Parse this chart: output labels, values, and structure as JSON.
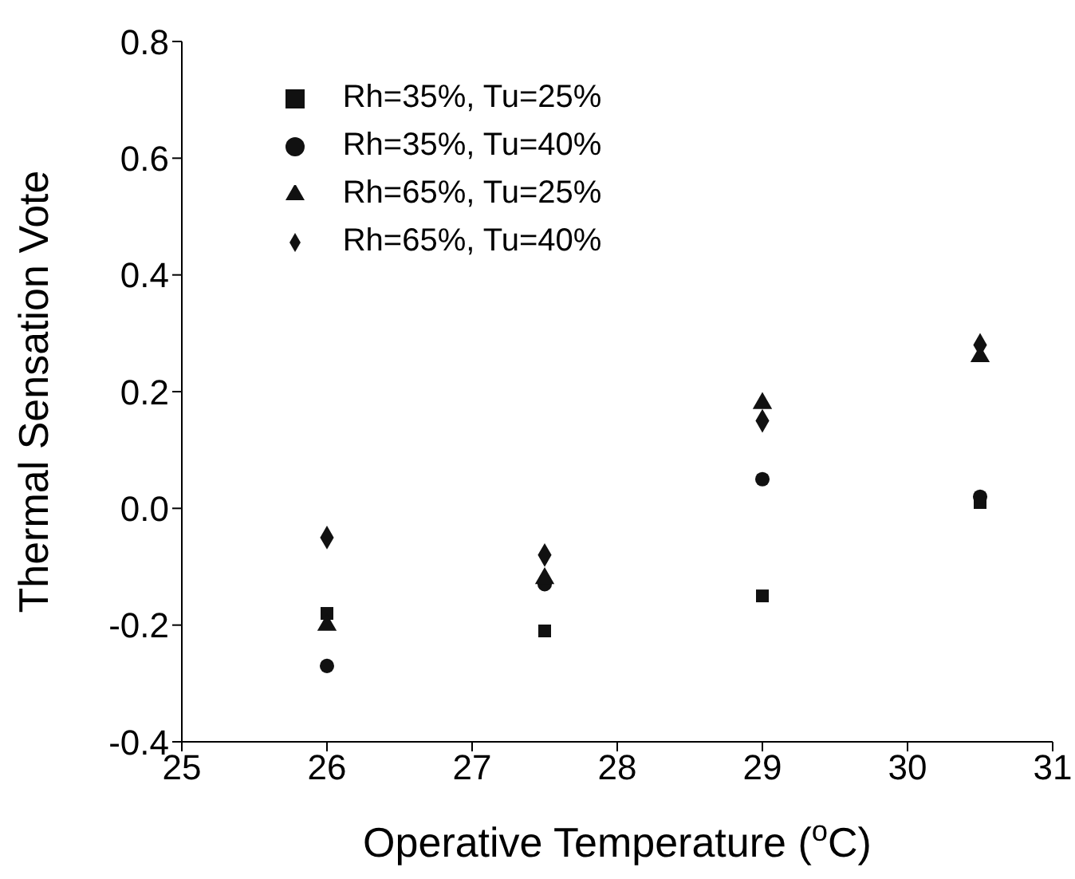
{
  "chart_data": {
    "type": "scatter",
    "xlabel": "Operative Temperature ($^{o}$C)",
    "ylabel": "Thermal Sensation Vote",
    "x": [
      26,
      27.5,
      29,
      30.5
    ],
    "series": [
      {
        "name": "Rh=35%, Tu=25%",
        "color": "#111111",
        "marker": "square",
        "values": [
          -0.18,
          -0.21,
          -0.15,
          0.01
        ]
      },
      {
        "name": "Rh=35%, Tu=40%",
        "color": "#111111",
        "marker": "circle",
        "values": [
          -0.27,
          -0.13,
          0.05,
          0.02
        ]
      },
      {
        "name": "Rh=65%, Tu=25%",
        "color": "#111111",
        "marker": "triangle",
        "values": [
          -0.2,
          -0.12,
          0.18,
          0.26
        ]
      },
      {
        "name": "Rh=65%, Tu=40%",
        "color": "#111111",
        "marker": "diamond",
        "values": [
          -0.05,
          -0.08,
          0.15,
          0.28
        ]
      }
    ],
    "xlim": [
      25,
      31
    ],
    "xticks": [
      25,
      26,
      27,
      28,
      29,
      30,
      31
    ],
    "ylim": [
      -0.4,
      0.8
    ],
    "yticks": [
      {
        "value": -0.4,
        "label": "-0.4"
      },
      {
        "value": -0.2,
        "label": "-0.2"
      },
      {
        "value": 0,
        "label": "0.0"
      },
      {
        "value": 0.2,
        "label": "0.2"
      },
      {
        "value": 0.4,
        "label": "0.4"
      },
      {
        "value": 0.6,
        "label": "0.6"
      },
      {
        "value": 0.8,
        "label": "0.8"
      }
    ],
    "grid": false,
    "legend": "top left"
  }
}
